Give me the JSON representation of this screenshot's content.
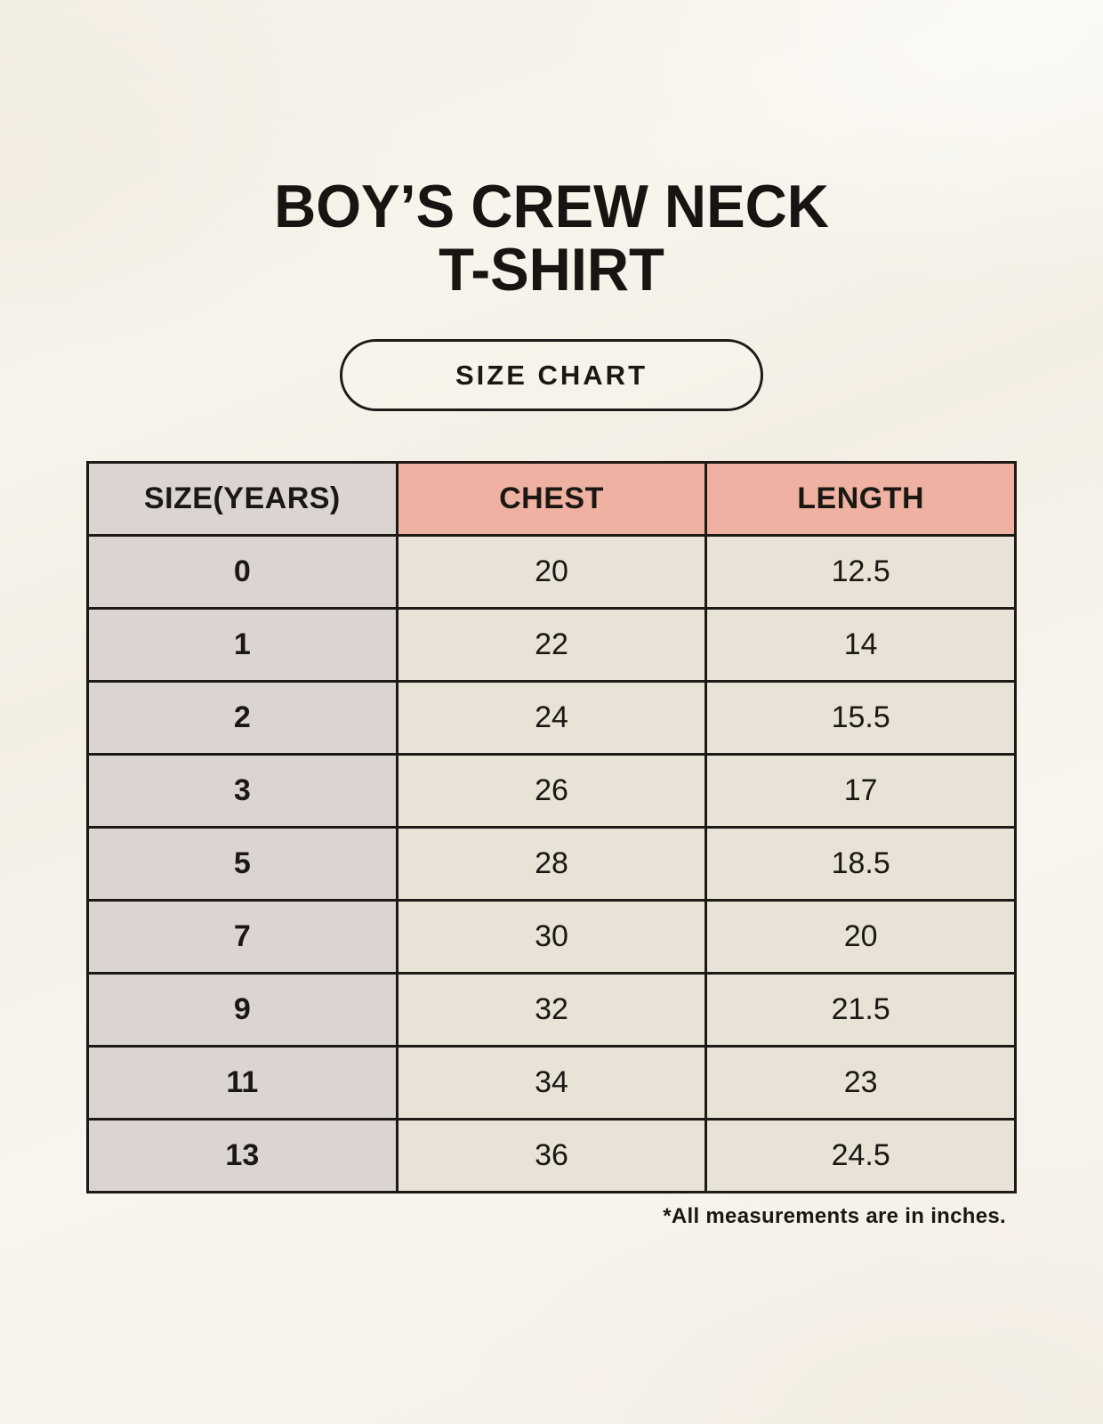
{
  "header": {
    "title_line1": "BOY’S CREW NECK",
    "title_line2": "T-SHIRT",
    "badge_label": "SIZE CHART"
  },
  "footer": {
    "note": "*All measurements are in inches."
  },
  "colors": {
    "page_background": "#f6f2ea",
    "accent_salmon": "#efb2a2",
    "size_column_gray": "#dbd4d1",
    "cell_cream": "#e9e3d7",
    "border_and_text": "#1d1a16"
  },
  "chart_data": {
    "type": "table",
    "title": "BOY’S CREW NECK T-SHIRT",
    "subtitle": "SIZE CHART",
    "columns": [
      "SIZE(YEARS)",
      "CHEST",
      "LENGTH"
    ],
    "rows": [
      [
        "0",
        "20",
        "12.5"
      ],
      [
        "1",
        "22",
        "14"
      ],
      [
        "2",
        "24",
        "15.5"
      ],
      [
        "3",
        "26",
        "17"
      ],
      [
        "5",
        "28",
        "18.5"
      ],
      [
        "7",
        "30",
        "20"
      ],
      [
        "9",
        "32",
        "21.5"
      ],
      [
        "11",
        "34",
        "23"
      ],
      [
        "13",
        "36",
        "24.5"
      ]
    ],
    "units": "inches",
    "footnote": "*All measurements are in inches."
  }
}
